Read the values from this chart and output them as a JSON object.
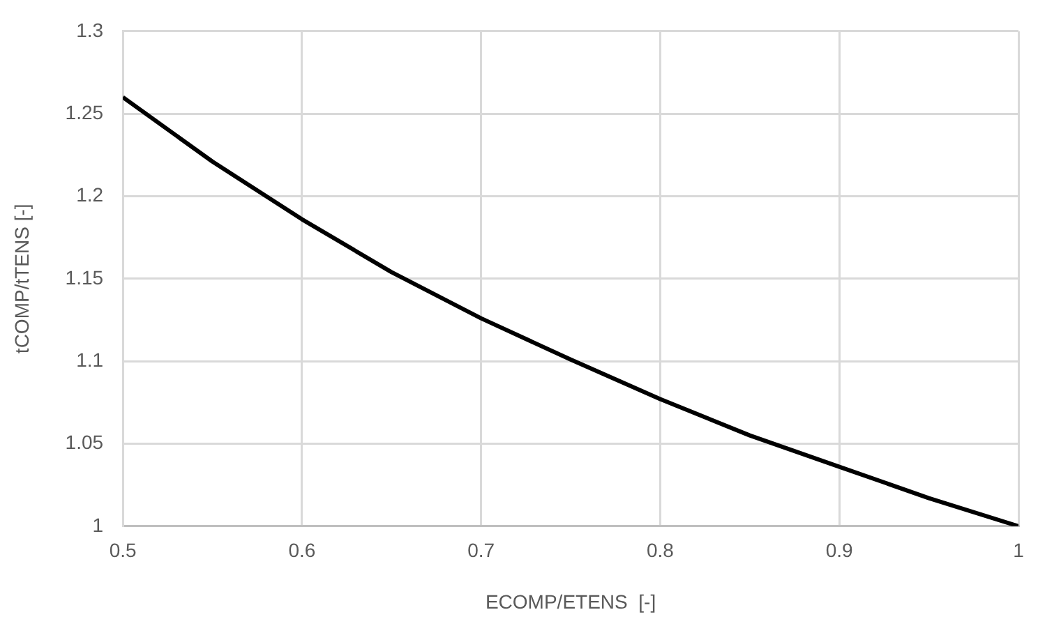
{
  "chart_data": {
    "type": "line",
    "xlabel": "ECOMP/ETENS  [-]",
    "ylabel": "tCOMP/tTENS [-]",
    "x": [
      0.5,
      0.55,
      0.6,
      0.65,
      0.7,
      0.75,
      0.8,
      0.85,
      0.9,
      0.95,
      1.0
    ],
    "series": [
      {
        "color": "#000000",
        "values": [
          1.26,
          1.221,
          1.186,
          1.154,
          1.126,
          1.101,
          1.077,
          1.055,
          1.036,
          1.017,
          1.0
        ]
      }
    ],
    "xlim": [
      0.5,
      1.0
    ],
    "xticks": [
      0.5,
      0.6,
      0.7,
      0.8,
      0.9,
      1
    ],
    "ylim": [
      1.0,
      1.3
    ],
    "yticks": [
      1,
      1.05,
      1.1,
      1.15,
      1.2,
      1.25,
      1.3
    ],
    "grid": true,
    "legend": false,
    "marker": "none",
    "line_style": "solid"
  }
}
